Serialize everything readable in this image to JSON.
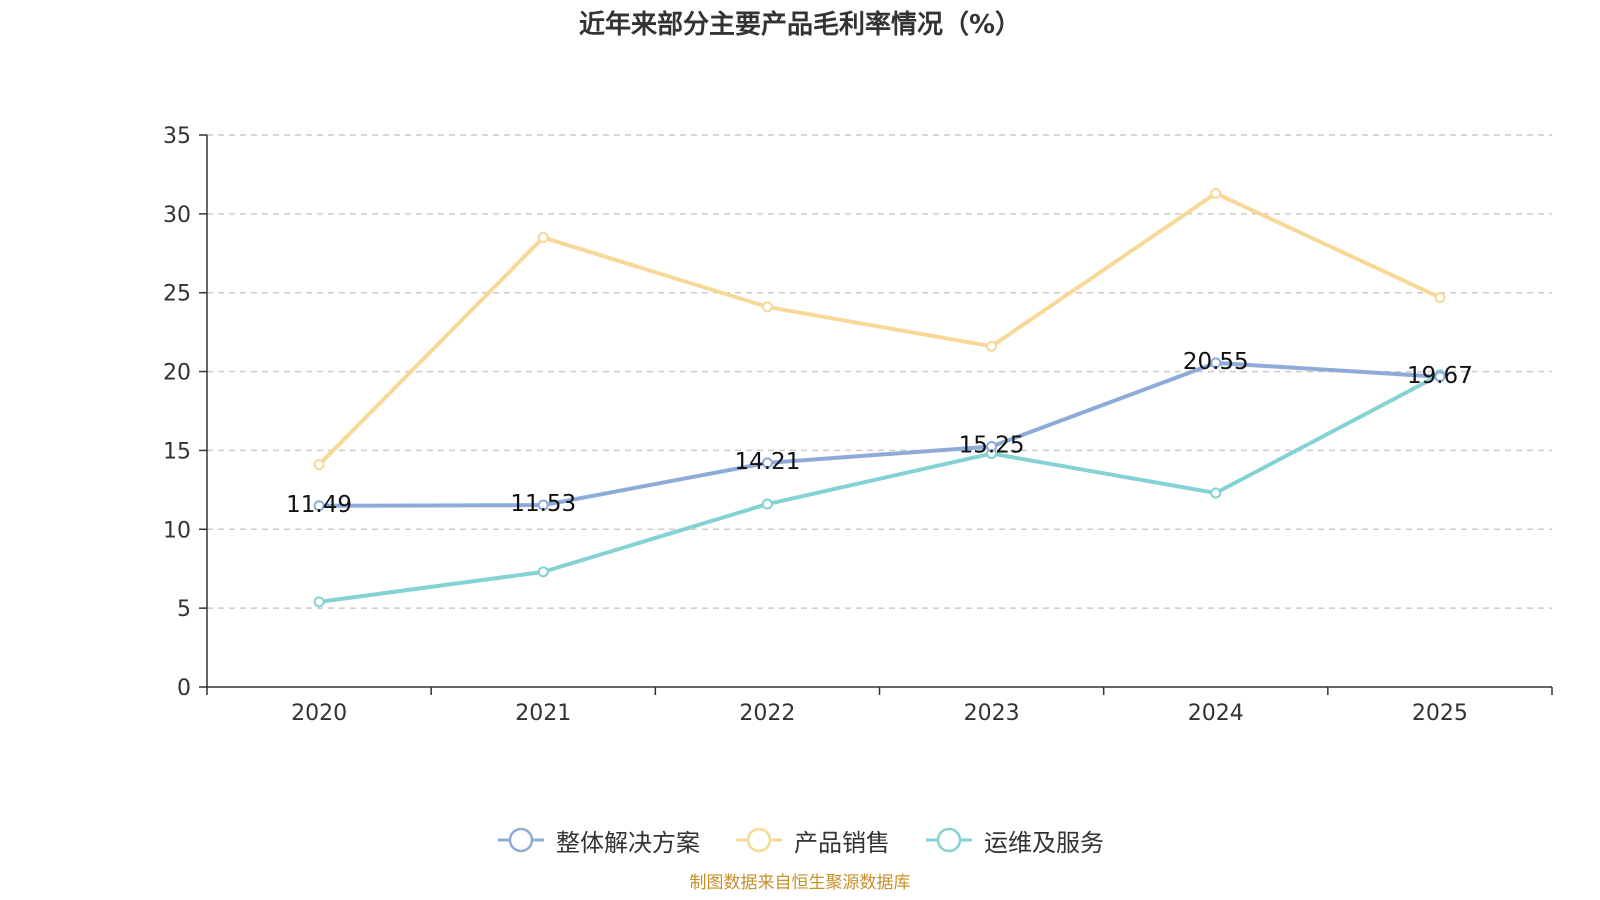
{
  "chart_data": {
    "type": "line",
    "title": "近年来部分主要产品毛利率情况（%）",
    "categories": [
      "2020",
      "2021",
      "2022",
      "2023",
      "2024",
      "2025"
    ],
    "ylim": [
      0,
      35
    ],
    "yticks": [
      0,
      5,
      10,
      15,
      20,
      25,
      30,
      35
    ],
    "grid": true,
    "legend_position": "bottom",
    "series": [
      {
        "name": "整体解决方案",
        "color": "#8eaad8",
        "values": [
          11.49,
          11.53,
          14.21,
          15.25,
          20.55,
          19.67
        ],
        "labels": [
          "11.49",
          "11.53",
          "14.21",
          "15.25",
          "20.55",
          "19.67"
        ]
      },
      {
        "name": "产品销售",
        "color": "#f7d896",
        "values": [
          14.1,
          28.5,
          24.1,
          21.6,
          31.3,
          24.7
        ],
        "labels": []
      },
      {
        "name": "运维及服务",
        "color": "#84d2d3",
        "values": [
          5.4,
          7.3,
          11.6,
          14.8,
          12.3,
          19.8
        ],
        "labels": []
      }
    ]
  },
  "source": "制图数据来自恒生聚源数据库"
}
